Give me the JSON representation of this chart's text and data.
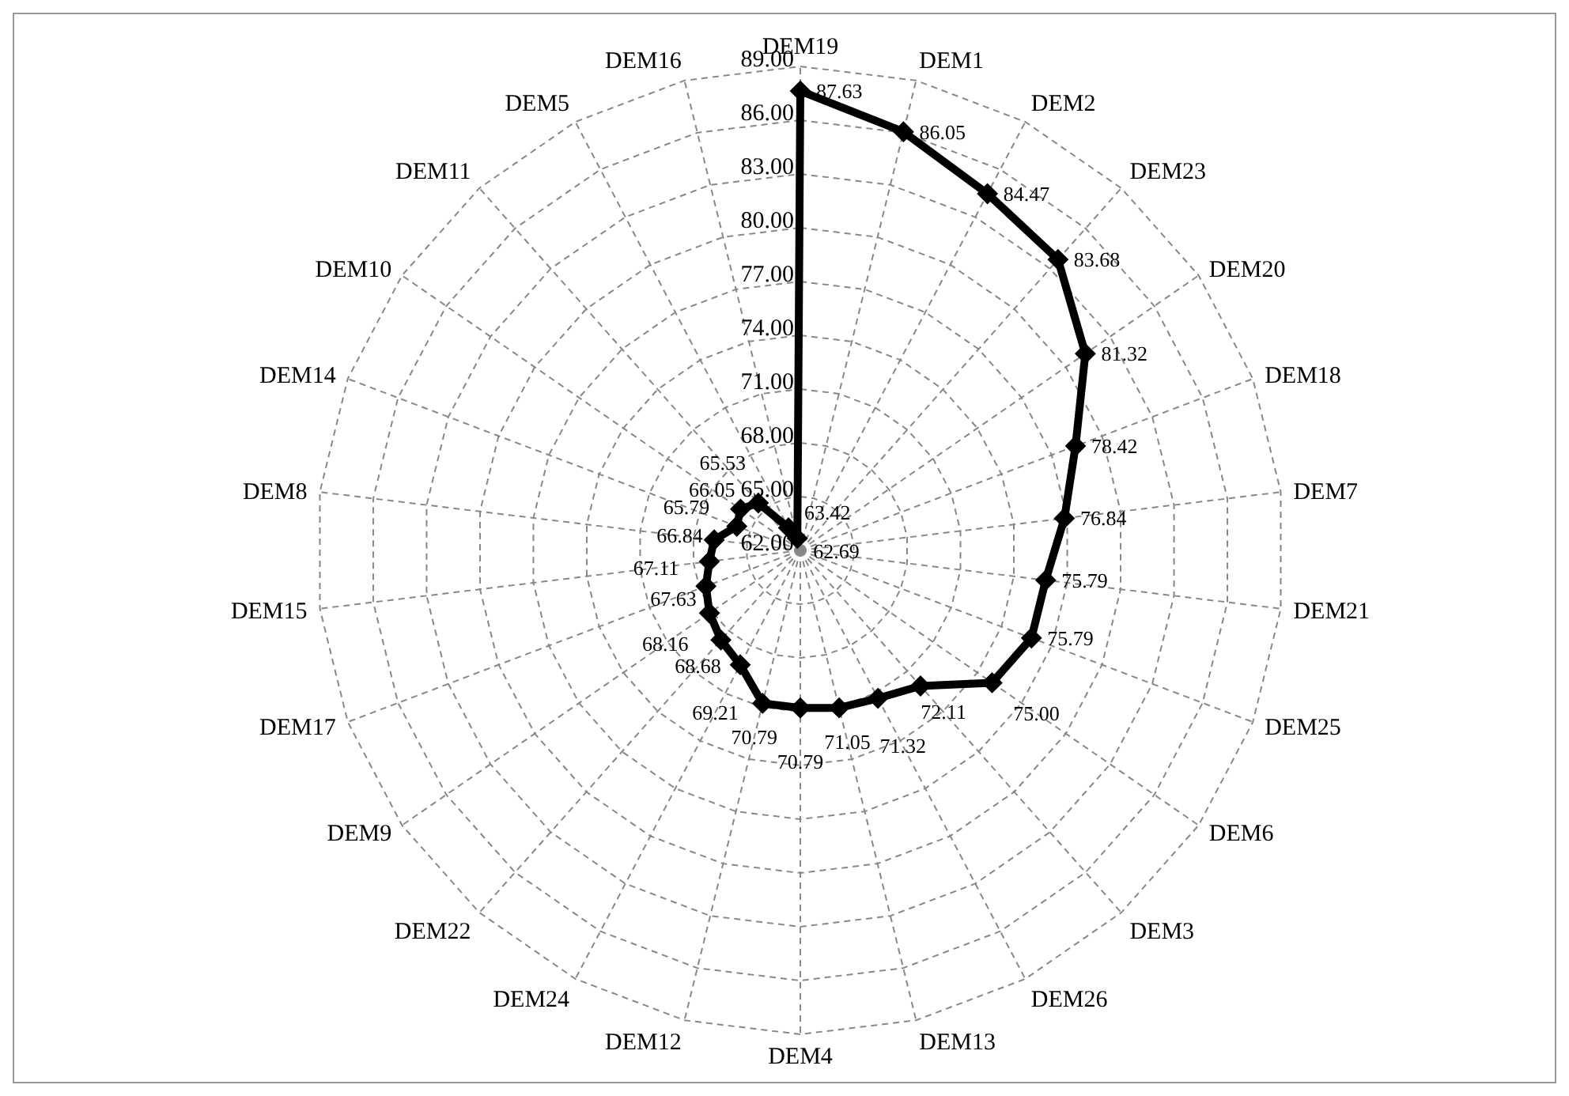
{
  "chart_data": {
    "type": "radar",
    "categories": [
      "DEM19",
      "DEM1",
      "DEM2",
      "DEM23",
      "DEM20",
      "DEM18",
      "DEM7",
      "DEM21",
      "DEM25",
      "DEM6",
      "DEM3",
      "DEM26",
      "DEM13",
      "DEM4",
      "DEM12",
      "DEM24",
      "DEM22",
      "DEM9",
      "DEM17",
      "DEM15",
      "DEM8",
      "DEM14",
      "DEM10",
      "DEM11",
      "DEM5",
      "DEM16"
    ],
    "series": [
      {
        "color": "#000000",
        "values": [
          87.63,
          86.05,
          84.47,
          83.68,
          81.32,
          78.42,
          76.84,
          75.79,
          75.79,
          75.0,
          72.11,
          71.32,
          71.05,
          70.79,
          70.79,
          69.21,
          68.68,
          68.16,
          67.63,
          67.11,
          66.84,
          65.79,
          66.05,
          65.53,
          63.42,
          62.69
        ],
        "value_labels": [
          "87.63",
          "86.05",
          "84.47",
          "83.68",
          "81.32",
          "78.42",
          "76.84",
          "75.79",
          "75.79",
          "75.00",
          "72.11",
          "71.32",
          "71.05",
          "70.79",
          "70.79",
          "69.21",
          "68.68",
          "68.16",
          "67.63",
          "67.11",
          "66.84",
          "65.79",
          "66.05",
          "65.53",
          "63.42",
          "62.69"
        ]
      }
    ],
    "ylim": [
      62,
      89
    ],
    "yticks": [
      {
        "value": 62,
        "label": "62.00"
      },
      {
        "value": 65,
        "label": "65.00"
      },
      {
        "value": 68,
        "label": "68.00"
      },
      {
        "value": 71,
        "label": "71.00"
      },
      {
        "value": 74,
        "label": "74.00"
      },
      {
        "value": 77,
        "label": "77.00"
      },
      {
        "value": 80,
        "label": "80.00"
      },
      {
        "value": 83,
        "label": "83.00"
      },
      {
        "value": 86,
        "label": "86.00"
      },
      {
        "value": 89,
        "label": "89.00"
      }
    ],
    "grid": true,
    "marker": "diamond",
    "legend": false
  }
}
